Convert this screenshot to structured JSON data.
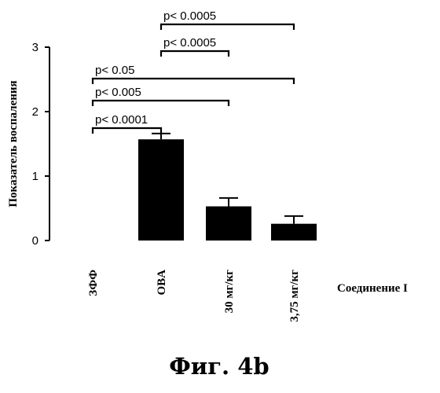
{
  "chart_data": {
    "type": "bar",
    "categories": [
      "ЗФФ",
      "OBA",
      "30 мг/кг",
      "3,75 мг/кг"
    ],
    "values": [
      0,
      1.57,
      0.53,
      0.26
    ],
    "errors": [
      0,
      0.09,
      0.13,
      0.12
    ],
    "ylabel": "Показатель воспаления",
    "group_label": "Соединение I",
    "ylim": [
      0,
      3
    ],
    "yticks": [
      0,
      1,
      2,
      3
    ],
    "bar_color": "#000000",
    "significance": [
      {
        "from": 0,
        "to": 1,
        "label": "p< 0.0001"
      },
      {
        "from": 0,
        "to": 2,
        "label": "p< 0.005"
      },
      {
        "from": 0,
        "to": 3,
        "label": "p< 0.05"
      },
      {
        "from": 1,
        "to": 2,
        "label": "p< 0.0005"
      },
      {
        "from": 1,
        "to": 3,
        "label": "p< 0.0005"
      }
    ]
  },
  "caption": "Фиг. 4b"
}
